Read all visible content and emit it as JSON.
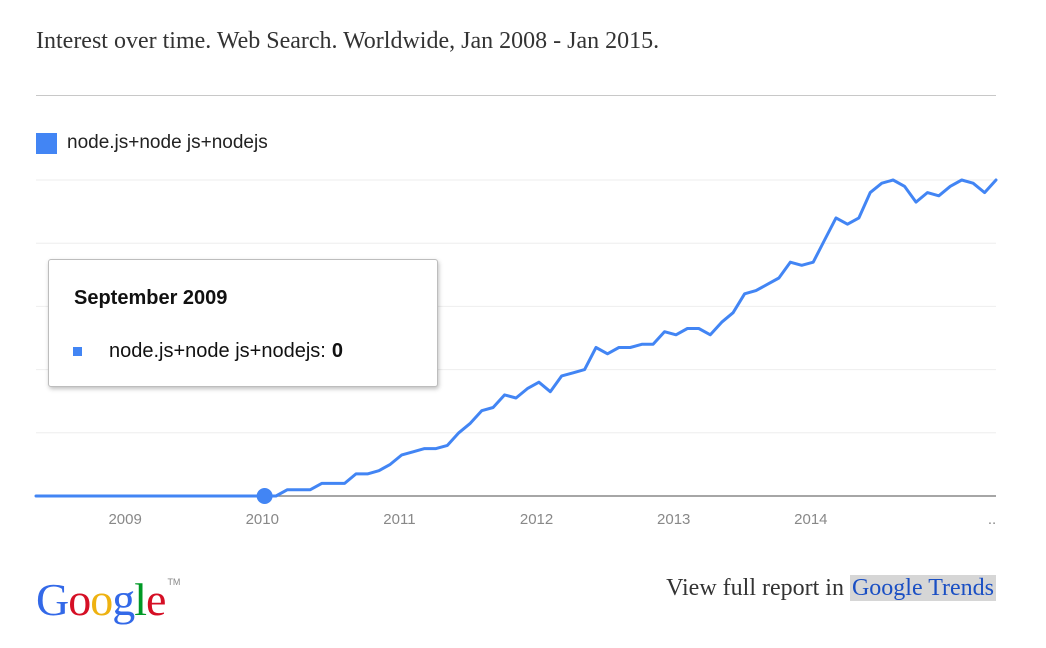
{
  "header": {
    "title": "Interest over time. Web Search. Worldwide, Jan 2008 - Jan 2015."
  },
  "colors": {
    "series": "#4285f4",
    "axis": "#888888",
    "grid": "#eeeeee",
    "tick_label": "#888888"
  },
  "tooltip": {
    "date": "September 2009",
    "series_label": "node.js+node js+nodejs:",
    "value": "0"
  },
  "footer": {
    "prefix": "View full report in ",
    "link_label": "Google Trends"
  },
  "logo": {
    "letters": [
      "G",
      "o",
      "o",
      "g",
      "l",
      "e"
    ],
    "letter_colors": [
      "#3369e8",
      "#d50f25",
      "#eeb211",
      "#3369e8",
      "#009925",
      "#d50f25"
    ],
    "trademark": "TM"
  },
  "chart_data": {
    "type": "line",
    "title": "Interest over time. Web Search. Worldwide, Jan 2008 - Jan 2015.",
    "xlabel": "",
    "ylabel": "",
    "ylim": [
      0,
      100
    ],
    "xlim": [
      2008.0,
      2015.0
    ],
    "grid": true,
    "legend": "top-left",
    "x_ticks": [
      {
        "value": 2009,
        "label": "2009"
      },
      {
        "value": 2010,
        "label": "2010"
      },
      {
        "value": 2011,
        "label": "2011"
      },
      {
        "value": 2012,
        "label": "2012"
      },
      {
        "value": 2013,
        "label": "2013"
      },
      {
        "value": 2014,
        "label": "2014"
      },
      {
        "value": 2015,
        "label": ".."
      }
    ],
    "highlight": {
      "x": 2009.667,
      "y": 0
    },
    "series": [
      {
        "name": "node.js+node js+nodejs",
        "x": [
          2008.0,
          2008.083,
          2008.167,
          2008.25,
          2008.333,
          2008.417,
          2008.5,
          2008.583,
          2008.667,
          2008.75,
          2008.833,
          2008.917,
          2009.0,
          2009.083,
          2009.167,
          2009.25,
          2009.333,
          2009.417,
          2009.5,
          2009.583,
          2009.667,
          2009.75,
          2009.833,
          2009.917,
          2010.0,
          2010.083,
          2010.167,
          2010.25,
          2010.333,
          2010.417,
          2010.5,
          2010.583,
          2010.667,
          2010.75,
          2010.833,
          2010.917,
          2011.0,
          2011.083,
          2011.167,
          2011.25,
          2011.333,
          2011.417,
          2011.5,
          2011.583,
          2011.667,
          2011.75,
          2011.833,
          2011.917,
          2012.0,
          2012.083,
          2012.167,
          2012.25,
          2012.333,
          2012.417,
          2012.5,
          2012.583,
          2012.667,
          2012.75,
          2012.833,
          2012.917,
          2013.0,
          2013.083,
          2013.167,
          2013.25,
          2013.333,
          2013.417,
          2013.5,
          2013.583,
          2013.667,
          2013.75,
          2013.833,
          2013.917,
          2014.0,
          2014.083,
          2014.167,
          2014.25,
          2014.333,
          2014.417,
          2014.5,
          2014.583,
          2014.667,
          2014.75,
          2014.833,
          2014.917,
          2015.0
        ],
        "values": [
          0,
          0,
          0,
          0,
          0,
          0,
          0,
          0,
          0,
          0,
          0,
          0,
          0,
          0,
          0,
          0,
          0,
          0,
          0,
          0,
          0,
          0,
          2,
          2,
          2,
          4,
          4,
          4,
          7,
          7,
          8,
          10,
          13,
          14,
          15,
          15,
          16,
          20,
          23,
          27,
          28,
          32,
          31,
          34,
          36,
          33,
          38,
          39,
          40,
          47,
          45,
          47,
          47,
          48,
          48,
          52,
          51,
          53,
          53,
          51,
          55,
          58,
          64,
          65,
          67,
          69,
          74,
          73,
          74,
          81,
          88,
          86,
          88,
          96,
          99,
          100,
          98,
          93,
          96,
          95,
          98,
          100,
          99,
          96,
          100
        ]
      }
    ]
  }
}
